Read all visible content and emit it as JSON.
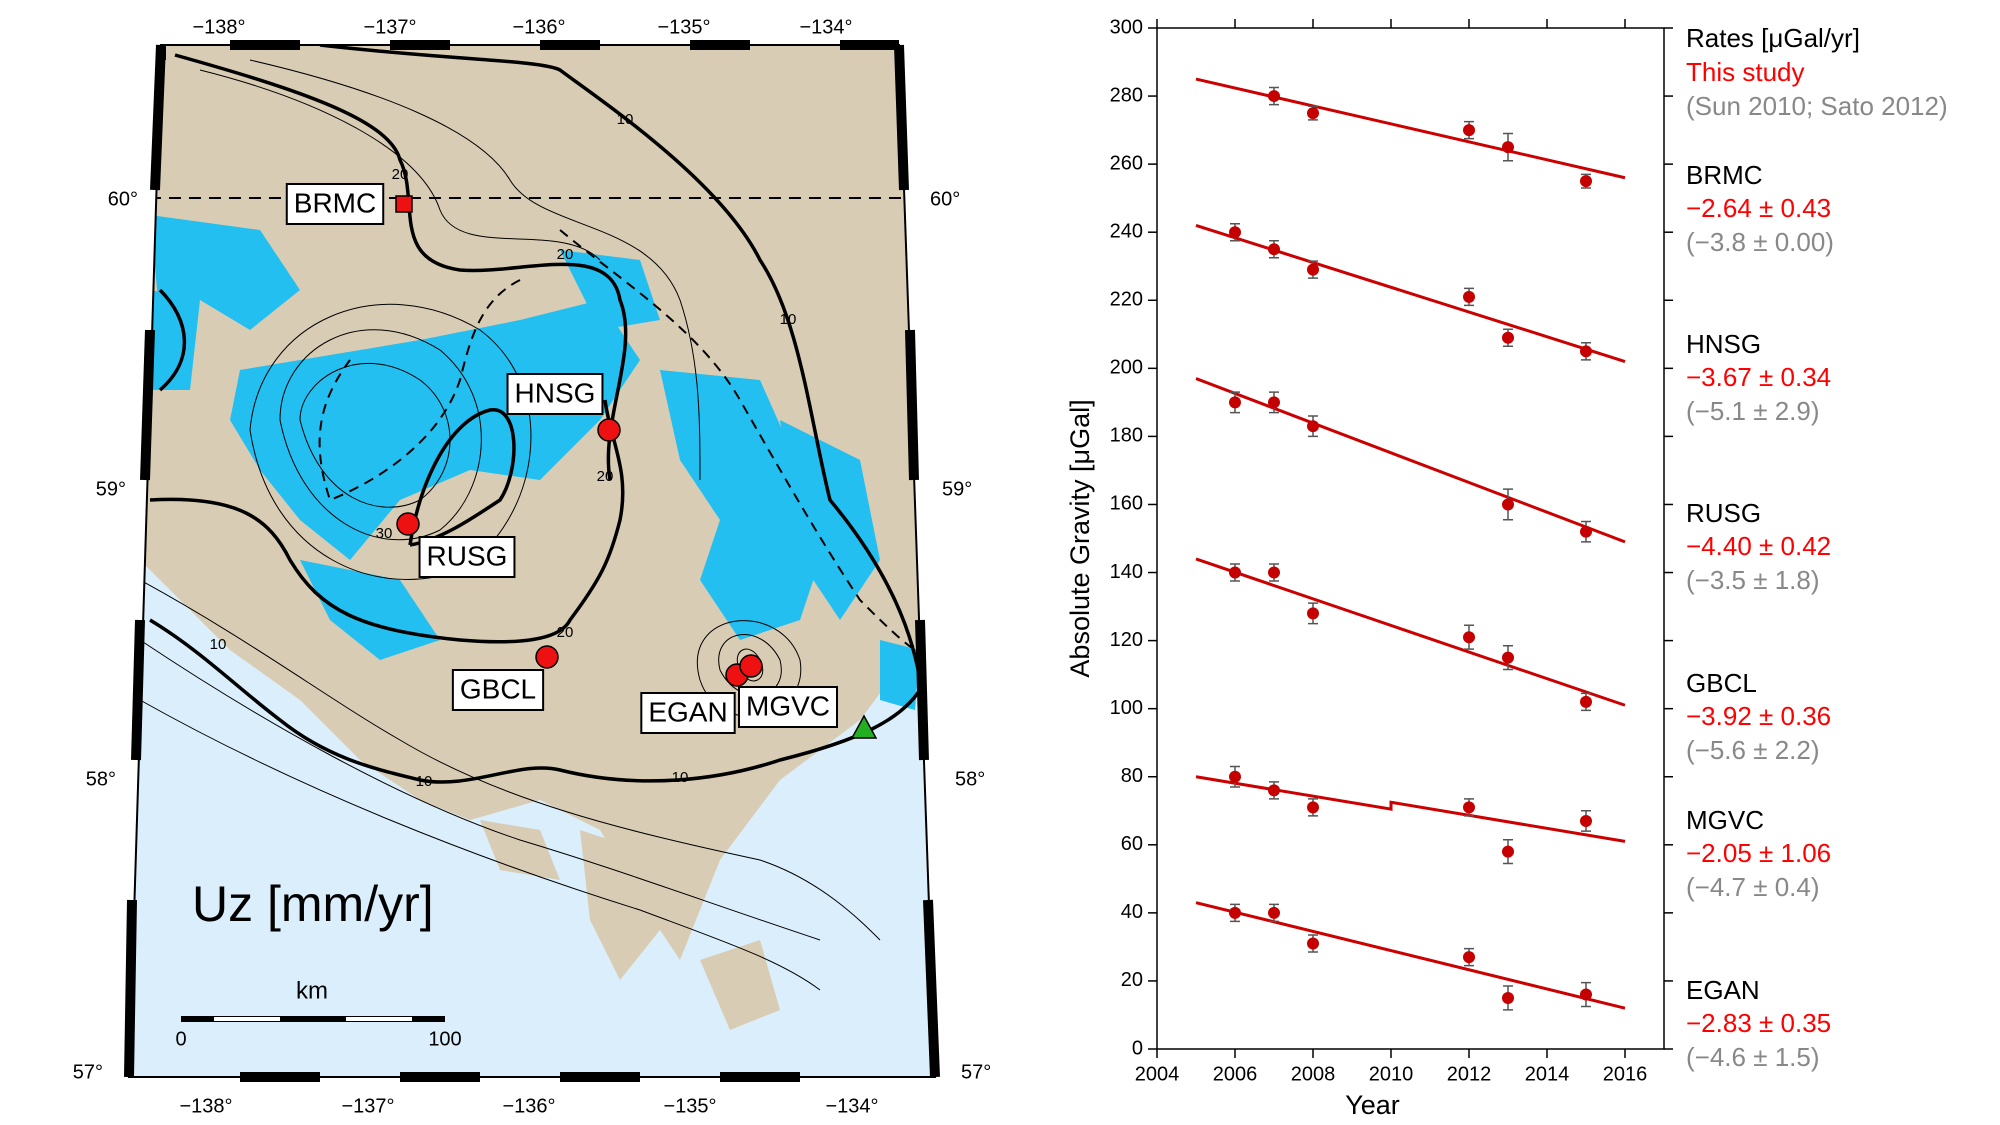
{
  "map": {
    "title": "Uz [mm/yr]",
    "lon_labels_top": [
      "−138°",
      "−137°",
      "−136°",
      "−135°",
      "−134°"
    ],
    "lon_labels_bottom": [
      "−138°",
      "−137°",
      "−136°",
      "−135°",
      "−134°"
    ],
    "lat_labels_left": [
      "60°",
      "59°",
      "58°",
      "57°"
    ],
    "lat_labels_right": [
      "60°",
      "59°",
      "58°",
      "57°"
    ],
    "stations": [
      "BRMC",
      "HNSG",
      "RUSG",
      "GBCL",
      "EGAN",
      "MGVC"
    ],
    "contour_labels": [
      "20",
      "10",
      "20",
      "10",
      "20",
      "30",
      "20",
      "10",
      "10",
      "10"
    ],
    "scale_bar": {
      "unit": "km",
      "start": "0",
      "end": "100"
    }
  },
  "chart_data": {
    "type": "scatter",
    "xlabel": "Year",
    "ylabel": "Absolute Gravity [μGal]",
    "xlim": [
      2004,
      2017
    ],
    "ylim": [
      0,
      300
    ],
    "xticks": [
      2004,
      2006,
      2008,
      2010,
      2012,
      2014,
      2016
    ],
    "yticks": [
      0,
      20,
      40,
      60,
      80,
      100,
      120,
      140,
      160,
      180,
      200,
      220,
      240,
      260,
      280,
      300
    ],
    "legend_title": "Rates [μGal/yr]",
    "legend_this": "This study",
    "legend_prior": "(Sun 2010; Sato 2012)",
    "point_color": "#c40000",
    "line_color": "#cc0000",
    "error_color": "#555555",
    "rate_color": "#ff0000",
    "prior_color": "#888888",
    "series": [
      {
        "name": "BRMC",
        "x": [
          2007,
          2008,
          2012,
          2013,
          2015
        ],
        "values": [
          280,
          275,
          270,
          265,
          255
        ],
        "errors": [
          2.5,
          2,
          2.5,
          4,
          2
        ],
        "fit_x": [
          2005,
          2016
        ],
        "fit_values": [
          285,
          256
        ],
        "rate": "−2.64 ± 0.43",
        "prior": "(−3.8 ± 0.00)"
      },
      {
        "name": "HNSG",
        "x": [
          2006,
          2007,
          2008,
          2012,
          2013,
          2015
        ],
        "values": [
          240,
          235,
          229,
          221,
          209,
          205
        ],
        "errors": [
          2.5,
          2.5,
          2.5,
          2.5,
          2.5,
          2.5
        ],
        "fit_x": [
          2005,
          2016
        ],
        "fit_values": [
          242,
          202
        ],
        "rate": "−3.67 ± 0.34",
        "prior": "(−5.1 ± 2.9)"
      },
      {
        "name": "RUSG",
        "x": [
          2006,
          2007,
          2008,
          2013,
          2015
        ],
        "values": [
          190,
          190,
          183,
          160,
          152
        ],
        "errors": [
          3,
          3,
          3,
          4.5,
          3
        ],
        "fit_x": [
          2005,
          2016
        ],
        "fit_values": [
          197,
          149
        ],
        "rate": "−4.40 ± 0.42",
        "prior": "(−3.5 ± 1.8)"
      },
      {
        "name": "GBCL",
        "x": [
          2006,
          2007,
          2008,
          2012,
          2013,
          2015
        ],
        "values": [
          140,
          140,
          128,
          121,
          115,
          102
        ],
        "errors": [
          2.5,
          2.5,
          3,
          3.5,
          3.5,
          2.5
        ],
        "fit_x": [
          2005,
          2016
        ],
        "fit_values": [
          144,
          101
        ],
        "rate": "−3.92 ± 0.36",
        "prior": "(−5.6 ± 2.2)"
      },
      {
        "name": "MGVC",
        "x": [
          2006,
          2007,
          2008,
          2012,
          2013,
          2015
        ],
        "values": [
          80,
          76,
          71,
          71,
          58,
          67
        ],
        "errors": [
          3,
          2.5,
          2.5,
          2.5,
          3.5,
          3
        ],
        "fit_x": [
          2005,
          2010,
          2010,
          2016
        ],
        "fit_values": [
          80,
          70.5,
          72.5,
          61
        ],
        "rate": "−2.05 ± 1.06",
        "prior": "(−4.7 ± 0.4)"
      },
      {
        "name": "EGAN",
        "x": [
          2006,
          2007,
          2008,
          2012,
          2013,
          2015
        ],
        "values": [
          40,
          40,
          31,
          27,
          15,
          16
        ],
        "errors": [
          2.5,
          2.5,
          2.5,
          2.5,
          3.5,
          3.5
        ],
        "fit_x": [
          2005,
          2016
        ],
        "fit_values": [
          43,
          12
        ],
        "rate": "−2.83 ± 0.35",
        "prior": "(−4.6 ± 1.5)"
      }
    ]
  }
}
